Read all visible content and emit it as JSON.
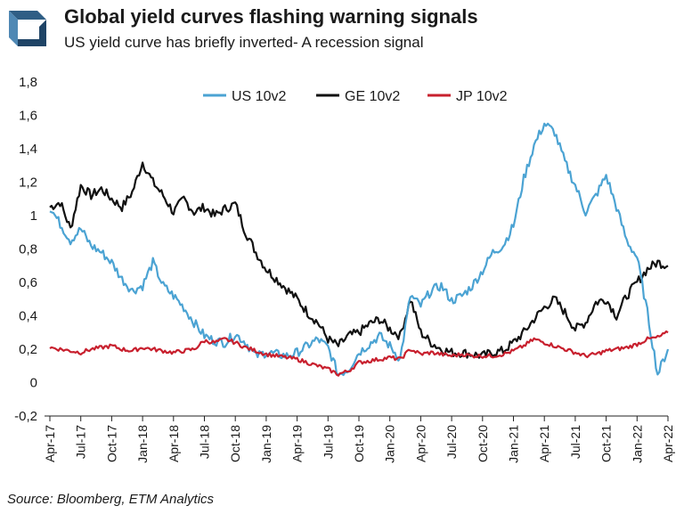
{
  "title": "Global yield curves flashing warning signals",
  "subtitle": "US yield curve has briefly inverted- A recession signal",
  "source": "Source: Bloomberg, ETM Analytics",
  "chart_data": {
    "type": "line",
    "title": "Global yield curves flashing warning signals",
    "subtitle": "US yield curve has briefly inverted- A recession signal",
    "xlabel": "",
    "ylabel": "",
    "ylim": [
      -0.2,
      1.8
    ],
    "yticks": [
      -0.2,
      0,
      0.2,
      0.4,
      0.6,
      0.8,
      1,
      1.2,
      1.4,
      1.6,
      1.8
    ],
    "ytick_labels": [
      "-0,2",
      "0",
      "0,2",
      "0,4",
      "0,6",
      "0,8",
      "1",
      "1,2",
      "1,4",
      "1,6",
      "1,8"
    ],
    "xtick_labels": [
      "Apr-17",
      "Jul-17",
      "Oct-17",
      "Jan-18",
      "Apr-18",
      "Jul-18",
      "Oct-18",
      "Jan-19",
      "Apr-19",
      "Jul-19",
      "Oct-19",
      "Jan-20",
      "Apr-20",
      "Jul-20",
      "Oct-20",
      "Jan-21",
      "Apr-21",
      "Jul-21",
      "Oct-21",
      "Jan-22",
      "Apr-22"
    ],
    "grid": false,
    "legend_position": "top-center",
    "series": [
      {
        "name": "US 10v2",
        "color": "#4ba3d3",
        "x": [
          "Apr-17",
          "May-17",
          "Jun-17",
          "Jul-17",
          "Aug-17",
          "Sep-17",
          "Oct-17",
          "Nov-17",
          "Dec-17",
          "Jan-18",
          "Feb-18",
          "Mar-18",
          "Apr-18",
          "May-18",
          "Jun-18",
          "Jul-18",
          "Aug-18",
          "Sep-18",
          "Oct-18",
          "Nov-18",
          "Dec-18",
          "Jan-19",
          "Feb-19",
          "Mar-19",
          "Apr-19",
          "May-19",
          "Jun-19",
          "Jul-19",
          "Aug-19",
          "Sep-19",
          "Oct-19",
          "Nov-19",
          "Dec-19",
          "Jan-20",
          "Feb-20",
          "Mar-20",
          "Apr-20",
          "May-20",
          "Jun-20",
          "Jul-20",
          "Aug-20",
          "Sep-20",
          "Oct-20",
          "Nov-20",
          "Dec-20",
          "Jan-21",
          "Feb-21",
          "Mar-21",
          "Apr-21",
          "May-21",
          "Jun-21",
          "Jul-21",
          "Aug-21",
          "Sep-21",
          "Oct-21",
          "Nov-21",
          "Dec-21",
          "Jan-22",
          "Feb-22",
          "Mar-22",
          "Apr-22"
        ],
        "values": [
          1.05,
          0.95,
          0.85,
          0.92,
          0.82,
          0.78,
          0.72,
          0.62,
          0.55,
          0.58,
          0.72,
          0.58,
          0.52,
          0.45,
          0.36,
          0.28,
          0.25,
          0.24,
          0.29,
          0.24,
          0.16,
          0.18,
          0.17,
          0.16,
          0.18,
          0.22,
          0.26,
          0.21,
          0.05,
          0.08,
          0.18,
          0.23,
          0.28,
          0.22,
          0.14,
          0.52,
          0.46,
          0.55,
          0.58,
          0.49,
          0.52,
          0.58,
          0.67,
          0.78,
          0.82,
          0.94,
          1.22,
          1.42,
          1.55,
          1.5,
          1.32,
          1.18,
          1.02,
          1.12,
          1.24,
          1.05,
          0.85,
          0.75,
          0.42,
          0.05,
          0.2
        ]
      },
      {
        "name": "GE 10v2",
        "color": "#111111",
        "x": [
          "Apr-17",
          "May-17",
          "Jun-17",
          "Jul-17",
          "Aug-17",
          "Sep-17",
          "Oct-17",
          "Nov-17",
          "Dec-17",
          "Jan-18",
          "Feb-18",
          "Mar-18",
          "Apr-18",
          "May-18",
          "Jun-18",
          "Jul-18",
          "Aug-18",
          "Sep-18",
          "Oct-18",
          "Nov-18",
          "Dec-18",
          "Jan-19",
          "Feb-19",
          "Mar-19",
          "Apr-19",
          "May-19",
          "Jun-19",
          "Jul-19",
          "Aug-19",
          "Sep-19",
          "Oct-19",
          "Nov-19",
          "Dec-19",
          "Jan-20",
          "Feb-20",
          "Mar-20",
          "Apr-20",
          "May-20",
          "Jun-20",
          "Jul-20",
          "Aug-20",
          "Sep-20",
          "Oct-20",
          "Nov-20",
          "Dec-20",
          "Jan-21",
          "Feb-21",
          "Mar-21",
          "Apr-21",
          "May-21",
          "Jun-21",
          "Jul-21",
          "Aug-21",
          "Sep-21",
          "Oct-21",
          "Nov-21",
          "Dec-21",
          "Jan-22",
          "Feb-22",
          "Mar-22",
          "Apr-22"
        ],
        "values": [
          1.05,
          1.08,
          0.92,
          1.18,
          1.12,
          1.16,
          1.1,
          1.05,
          1.14,
          1.32,
          1.2,
          1.12,
          1.02,
          1.1,
          1.02,
          1.05,
          1.0,
          1.04,
          1.07,
          0.9,
          0.78,
          0.68,
          0.62,
          0.56,
          0.5,
          0.42,
          0.36,
          0.26,
          0.22,
          0.28,
          0.3,
          0.35,
          0.38,
          0.32,
          0.28,
          0.5,
          0.3,
          0.24,
          0.2,
          0.18,
          0.18,
          0.17,
          0.16,
          0.18,
          0.19,
          0.24,
          0.3,
          0.38,
          0.45,
          0.5,
          0.42,
          0.32,
          0.36,
          0.48,
          0.5,
          0.4,
          0.52,
          0.6,
          0.68,
          0.72,
          0.7
        ]
      },
      {
        "name": "JP 10v2",
        "color": "#c8202e",
        "x": [
          "Apr-17",
          "May-17",
          "Jun-17",
          "Jul-17",
          "Aug-17",
          "Sep-17",
          "Oct-17",
          "Nov-17",
          "Dec-17",
          "Jan-18",
          "Feb-18",
          "Mar-18",
          "Apr-18",
          "May-18",
          "Jun-18",
          "Jul-18",
          "Aug-18",
          "Sep-18",
          "Oct-18",
          "Nov-18",
          "Dec-18",
          "Jan-19",
          "Feb-19",
          "Mar-19",
          "Apr-19",
          "May-19",
          "Jun-19",
          "Jul-19",
          "Aug-19",
          "Sep-19",
          "Oct-19",
          "Nov-19",
          "Dec-19",
          "Jan-20",
          "Feb-20",
          "Mar-20",
          "Apr-20",
          "May-20",
          "Jun-20",
          "Jul-20",
          "Aug-20",
          "Sep-20",
          "Oct-20",
          "Nov-20",
          "Dec-20",
          "Jan-21",
          "Feb-21",
          "Mar-21",
          "Apr-21",
          "May-21",
          "Jun-21",
          "Jul-21",
          "Aug-21",
          "Sep-21",
          "Oct-21",
          "Nov-21",
          "Dec-21",
          "Jan-22",
          "Feb-22",
          "Mar-22",
          "Apr-22"
        ],
        "values": [
          0.21,
          0.2,
          0.19,
          0.18,
          0.2,
          0.21,
          0.22,
          0.2,
          0.19,
          0.21,
          0.2,
          0.19,
          0.18,
          0.19,
          0.2,
          0.25,
          0.24,
          0.26,
          0.24,
          0.21,
          0.19,
          0.17,
          0.16,
          0.15,
          0.14,
          0.12,
          0.1,
          0.08,
          0.05,
          0.07,
          0.12,
          0.13,
          0.14,
          0.15,
          0.14,
          0.2,
          0.17,
          0.18,
          0.17,
          0.16,
          0.17,
          0.16,
          0.16,
          0.16,
          0.17,
          0.19,
          0.22,
          0.26,
          0.24,
          0.22,
          0.2,
          0.18,
          0.16,
          0.17,
          0.19,
          0.2,
          0.21,
          0.23,
          0.26,
          0.27,
          0.3
        ]
      }
    ]
  }
}
